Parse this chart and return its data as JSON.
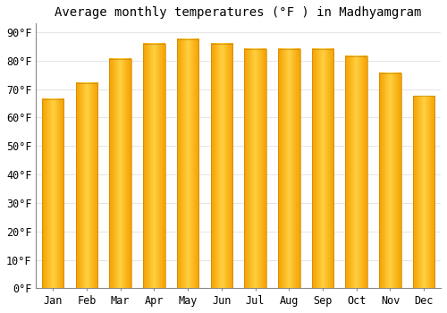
{
  "title": "Average monthly temperatures (°F ) in Madhyamgram",
  "months": [
    "Jan",
    "Feb",
    "Mar",
    "Apr",
    "May",
    "Jun",
    "Jul",
    "Aug",
    "Sep",
    "Oct",
    "Nov",
    "Dec"
  ],
  "values": [
    66.5,
    72.0,
    80.5,
    86.0,
    87.5,
    86.0,
    84.0,
    84.0,
    84.0,
    81.5,
    75.5,
    67.5
  ],
  "bar_color_center": "#FFD040",
  "bar_color_edge": "#F5A000",
  "bar_edge_color": "#C8880A",
  "ylim": [
    0,
    93
  ],
  "yticks": [
    0,
    10,
    20,
    30,
    40,
    50,
    60,
    70,
    80,
    90
  ],
  "ytick_labels": [
    "0°F",
    "10°F",
    "20°F",
    "30°F",
    "40°F",
    "50°F",
    "60°F",
    "70°F",
    "80°F",
    "90°F"
  ],
  "background_color": "#ffffff",
  "grid_color": "#e0e0e0",
  "title_fontsize": 10,
  "tick_fontsize": 8.5,
  "bar_width": 0.65
}
